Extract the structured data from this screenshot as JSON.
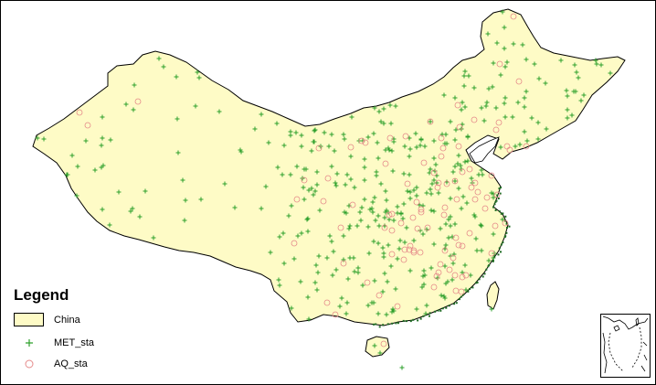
{
  "legend": {
    "title": "Legend",
    "items": [
      {
        "label": "China",
        "symbol": "polygon",
        "fill": "#fefbc6",
        "stroke": "#000000"
      },
      {
        "label": "MET_sta",
        "symbol": "plus",
        "color": "#2ea02c"
      },
      {
        "label": "AQ_sta",
        "symbol": "circle",
        "color": "#e58a8a"
      }
    ]
  },
  "colors": {
    "land": "#fefbc6",
    "border": "#000000",
    "met_station": "#2ea02c",
    "aq_station": "#e58a8a",
    "coast_dense": "#1d6b22"
  },
  "inset": {
    "name": "south-china-sea-inset"
  }
}
